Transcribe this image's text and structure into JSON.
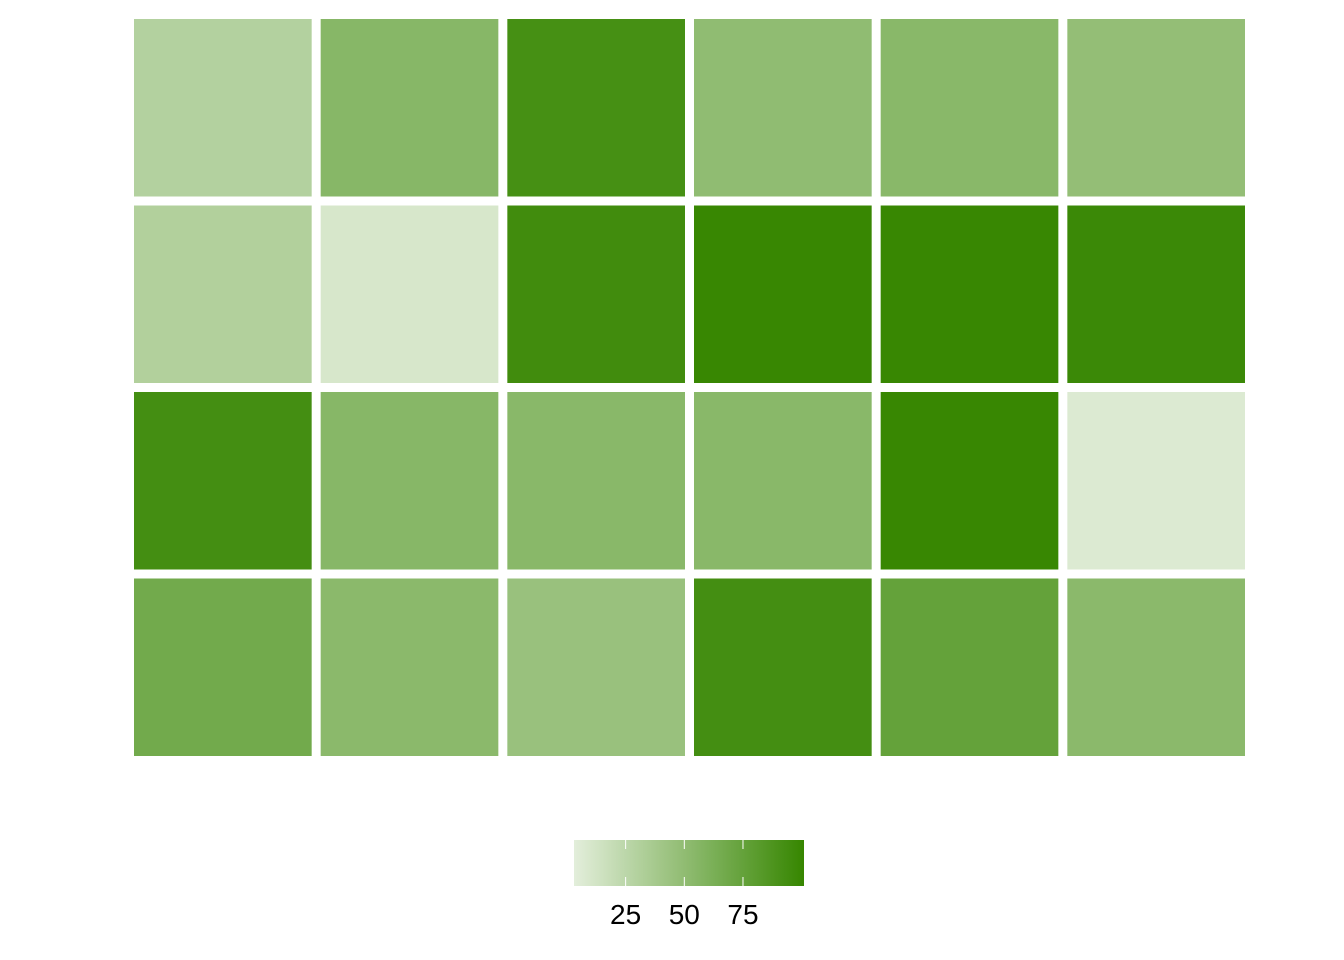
{
  "chart_data": {
    "type": "heatmap",
    "title": "",
    "xlabel": "",
    "ylabel": "",
    "rows": 4,
    "cols": 6,
    "values": [
      [
        30,
        55,
        92,
        50,
        54,
        48
      ],
      [
        31,
        10,
        95,
        100,
        100,
        98
      ],
      [
        93,
        55,
        54,
        54,
        100,
        7
      ],
      [
        67,
        53,
        45,
        93,
        75,
        53
      ]
    ],
    "color_scale": {
      "low_color": "#e3eedb",
      "high_color": "#368600",
      "min": 3,
      "max": 101
    },
    "legend": {
      "position": "bottom",
      "ticks": [
        25,
        50,
        75
      ],
      "tick_labels": [
        "25",
        "50",
        "75"
      ]
    },
    "grid": false
  }
}
